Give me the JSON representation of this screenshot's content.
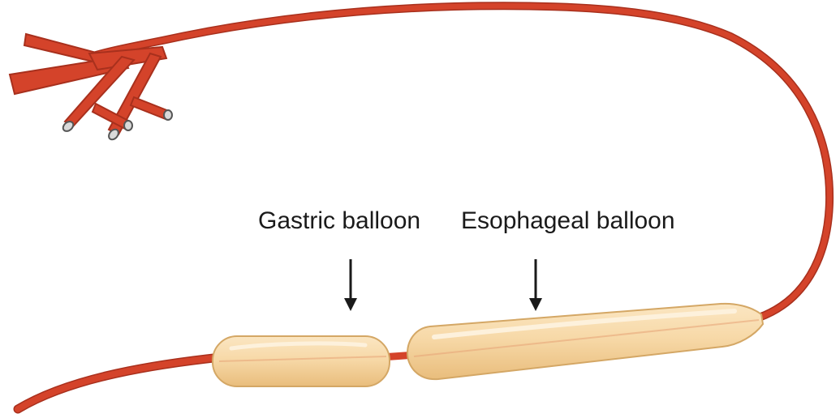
{
  "labels": {
    "gastric_balloon": "Gastric balloon",
    "esophageal_balloon": "Esophageal balloon"
  },
  "colors": {
    "tube": "#d4432a",
    "tube_dark": "#a8301d",
    "tube_highlight": "#ee8a6c",
    "balloon_fill": "#f5d7a6",
    "balloon_edge": "#d4a765",
    "balloon_highlight": "#fdf1dc",
    "arrow": "#1a1a1a",
    "port_cap": "#d9d9d9"
  },
  "icons": {
    "arrow": "arrow-down-icon"
  }
}
